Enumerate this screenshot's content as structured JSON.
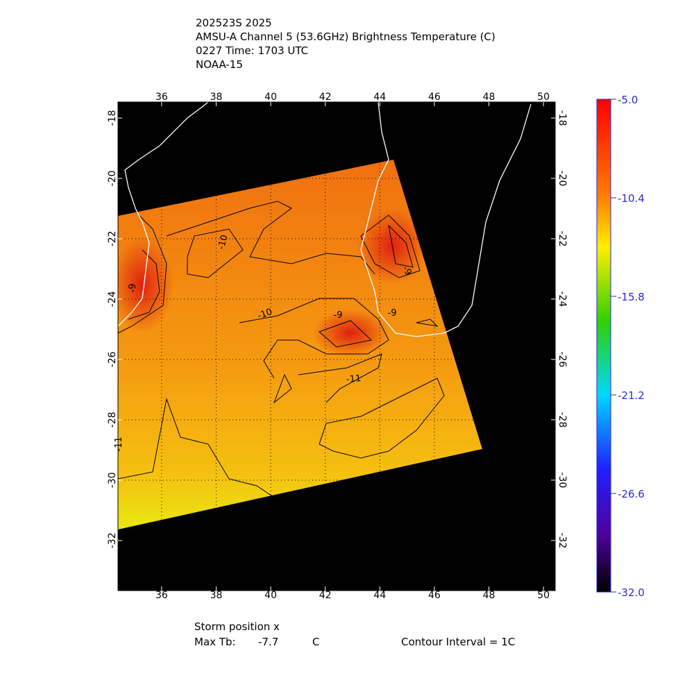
{
  "header": {
    "lines": [
      "202523S 2025",
      "AMSU-A Channel 5 (53.6GHz) Brightness Temperature (C)",
      "0227 Time: 1703 UTC",
      "NOAA-15"
    ]
  },
  "map": {
    "xlim": [
      34.4,
      50.43
    ],
    "ylim": [
      -33.66,
      -17.47
    ],
    "xticks": [
      36,
      38,
      40,
      42,
      44,
      46,
      48,
      50
    ],
    "yticks": [
      -18,
      -20,
      -22,
      -24,
      -26,
      -28,
      -30,
      -32
    ],
    "contour_labels": [
      -10,
      -9,
      -10,
      -9,
      -11,
      -9,
      -9,
      -11
    ]
  },
  "colorbar": {
    "clim": [
      -32,
      -5
    ],
    "ticks": [
      {
        "value": -5,
        "label": "-5.0"
      },
      {
        "value": -10.4,
        "label": "-10.4"
      },
      {
        "value": -15.8,
        "label": "-15.8"
      },
      {
        "value": -21.2,
        "label": "-21.2"
      },
      {
        "value": -26.6,
        "label": "-26.6"
      },
      {
        "value": -32,
        "label": "-32.0"
      }
    ]
  },
  "footer": {
    "storm_position": "Storm position x",
    "max_tb_label": "Max Tb:",
    "max_tb": -7.7,
    "unit": "C",
    "contour_interval": "Contour Interval = 1C"
  }
}
